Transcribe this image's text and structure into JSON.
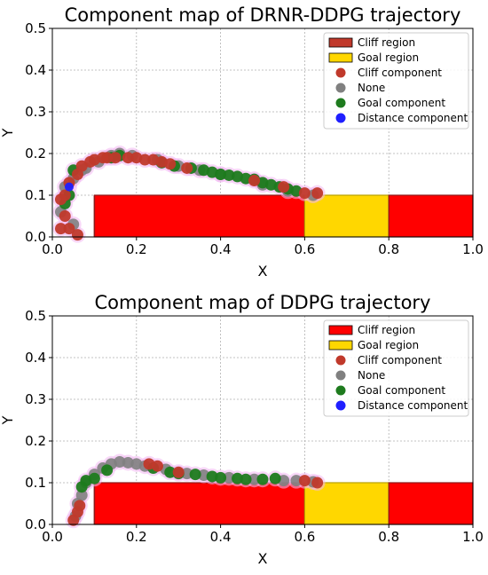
{
  "colors": {
    "cliff_region": "#ff0000",
    "cliff_region_edge": "#8b1a1a",
    "goal_region": "#ffd700",
    "cliff_component": "#c0392b",
    "none_component": "#808080",
    "goal_component": "#1e7b1e",
    "distance_component": "#1f1fff",
    "trail": "#f2b8f2"
  },
  "chart_data": [
    {
      "type": "scatter",
      "title": "Component map of DRNR-DDPG trajectory",
      "xlabel": "X",
      "ylabel": "Y",
      "xlim": [
        0.0,
        1.0
      ],
      "ylim": [
        0.0,
        0.5
      ],
      "xticks": [
        "0.0",
        "0.2",
        "0.4",
        "0.6",
        "0.8",
        "1.0"
      ],
      "yticks": [
        "0.0",
        "0.1",
        "0.2",
        "0.3",
        "0.4",
        "0.5"
      ],
      "grid": true,
      "legend_position": "top-right",
      "legend": [
        "Cliff region",
        "Goal region",
        "Cliff component",
        "None",
        "Goal component",
        "Distance component"
      ],
      "regions": [
        {
          "name": "Cliff region",
          "x": [
            0.1,
            0.6
          ],
          "y": [
            0.0,
            0.1
          ]
        },
        {
          "name": "Goal region",
          "x": [
            0.6,
            0.8
          ],
          "y": [
            0.0,
            0.1
          ]
        },
        {
          "name": "Cliff region",
          "x": [
            0.8,
            1.0
          ],
          "y": [
            0.0,
            0.1
          ]
        }
      ],
      "series": [
        {
          "name": "Cliff component",
          "points": [
            [
              0.02,
              0.02
            ],
            [
              0.03,
              0.05
            ],
            [
              0.02,
              0.09
            ],
            [
              0.03,
              0.1
            ],
            [
              0.04,
              0.13
            ],
            [
              0.06,
              0.15
            ],
            [
              0.07,
              0.17
            ],
            [
              0.09,
              0.18
            ],
            [
              0.1,
              0.185
            ],
            [
              0.12,
              0.19
            ],
            [
              0.13,
              0.19
            ],
            [
              0.15,
              0.19
            ],
            [
              0.18,
              0.19
            ],
            [
              0.2,
              0.19
            ],
            [
              0.22,
              0.185
            ],
            [
              0.24,
              0.185
            ],
            [
              0.26,
              0.18
            ],
            [
              0.28,
              0.175
            ],
            [
              0.32,
              0.165
            ],
            [
              0.48,
              0.135
            ],
            [
              0.55,
              0.12
            ],
            [
              0.6,
              0.105
            ],
            [
              0.63,
              0.105
            ],
            [
              0.04,
              0.02
            ],
            [
              0.06,
              0.005
            ]
          ]
        },
        {
          "name": "None",
          "points": [
            [
              0.03,
              0.12
            ],
            [
              0.05,
              0.14
            ],
            [
              0.08,
              0.165
            ],
            [
              0.11,
              0.18
            ],
            [
              0.14,
              0.195
            ],
            [
              0.16,
              0.2
            ],
            [
              0.19,
              0.195
            ],
            [
              0.25,
              0.185
            ],
            [
              0.3,
              0.17
            ],
            [
              0.35,
              0.16
            ],
            [
              0.4,
              0.15
            ],
            [
              0.5,
              0.125
            ],
            [
              0.56,
              0.11
            ],
            [
              0.62,
              0.1
            ],
            [
              0.07,
              0.16
            ],
            [
              0.02,
              0.06
            ],
            [
              0.05,
              0.03
            ]
          ]
        },
        {
          "name": "Goal component",
          "points": [
            [
              0.03,
              0.08
            ],
            [
              0.04,
              0.1
            ],
            [
              0.05,
              0.16
            ],
            [
              0.16,
              0.195
            ],
            [
              0.29,
              0.17
            ],
            [
              0.33,
              0.165
            ],
            [
              0.36,
              0.16
            ],
            [
              0.38,
              0.155
            ],
            [
              0.4,
              0.15
            ],
            [
              0.42,
              0.148
            ],
            [
              0.44,
              0.145
            ],
            [
              0.46,
              0.14
            ],
            [
              0.48,
              0.138
            ],
            [
              0.5,
              0.13
            ],
            [
              0.52,
              0.125
            ],
            [
              0.54,
              0.12
            ],
            [
              0.56,
              0.115
            ],
            [
              0.58,
              0.11
            ],
            [
              0.14,
              0.19
            ],
            [
              0.26,
              0.178
            ]
          ]
        },
        {
          "name": "Distance component",
          "points": [
            [
              0.04,
              0.12
            ]
          ]
        }
      ]
    },
    {
      "type": "scatter",
      "title": "Component map of DDPG trajectory",
      "xlabel": "X",
      "ylabel": "Y",
      "xlim": [
        0.0,
        1.0
      ],
      "ylim": [
        0.0,
        0.5
      ],
      "xticks": [
        "0.0",
        "0.2",
        "0.4",
        "0.6",
        "0.8",
        "1.0"
      ],
      "yticks": [
        "0.0",
        "0.1",
        "0.2",
        "0.3",
        "0.4",
        "0.5"
      ],
      "grid": true,
      "legend_position": "top-right",
      "legend": [
        "Cliff region",
        "Goal region",
        "Cliff component",
        "None",
        "Goal component",
        "Distance component"
      ],
      "regions": [
        {
          "name": "Cliff region",
          "x": [
            0.1,
            0.6
          ],
          "y": [
            0.0,
            0.1
          ]
        },
        {
          "name": "Goal region",
          "x": [
            0.6,
            0.8
          ],
          "y": [
            0.0,
            0.1
          ]
        },
        {
          "name": "Cliff region",
          "x": [
            0.8,
            1.0
          ],
          "y": [
            0.0,
            0.1
          ]
        }
      ],
      "series": [
        {
          "name": "Cliff component",
          "points": [
            [
              0.05,
              0.01
            ],
            [
              0.06,
              0.03
            ],
            [
              0.065,
              0.045
            ],
            [
              0.23,
              0.145
            ],
            [
              0.25,
              0.14
            ],
            [
              0.3,
              0.125
            ],
            [
              0.6,
              0.105
            ],
            [
              0.63,
              0.1
            ]
          ]
        },
        {
          "name": "None",
          "points": [
            [
              0.055,
              0.02
            ],
            [
              0.06,
              0.05
            ],
            [
              0.07,
              0.07
            ],
            [
              0.08,
              0.1
            ],
            [
              0.1,
              0.12
            ],
            [
              0.12,
              0.135
            ],
            [
              0.14,
              0.145
            ],
            [
              0.16,
              0.15
            ],
            [
              0.18,
              0.148
            ],
            [
              0.2,
              0.145
            ],
            [
              0.22,
              0.14
            ],
            [
              0.27,
              0.132
            ],
            [
              0.32,
              0.122
            ],
            [
              0.36,
              0.118
            ],
            [
              0.42,
              0.112
            ],
            [
              0.48,
              0.108
            ],
            [
              0.55,
              0.105
            ],
            [
              0.58,
              0.105
            ],
            [
              0.62,
              0.102
            ]
          ]
        },
        {
          "name": "Goal component",
          "points": [
            [
              0.07,
              0.09
            ],
            [
              0.08,
              0.105
            ],
            [
              0.1,
              0.11
            ],
            [
              0.13,
              0.13
            ],
            [
              0.24,
              0.135
            ],
            [
              0.28,
              0.125
            ],
            [
              0.3,
              0.122
            ],
            [
              0.34,
              0.12
            ],
            [
              0.38,
              0.115
            ],
            [
              0.4,
              0.112
            ],
            [
              0.44,
              0.11
            ],
            [
              0.46,
              0.108
            ],
            [
              0.5,
              0.108
            ],
            [
              0.53,
              0.11
            ]
          ]
        },
        {
          "name": "Distance component",
          "points": []
        }
      ]
    }
  ]
}
